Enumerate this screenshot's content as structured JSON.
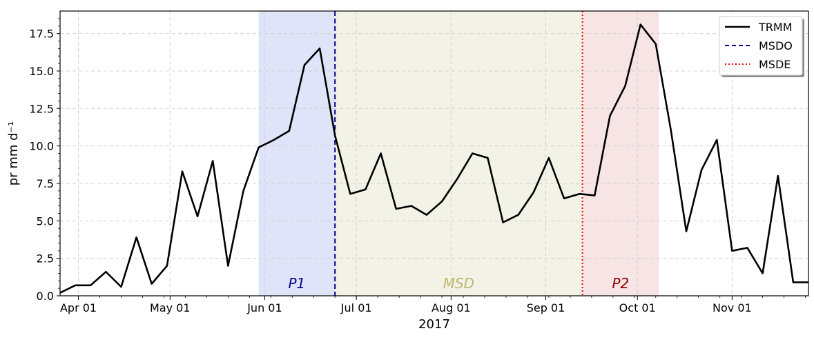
{
  "chart_data": {
    "type": "line",
    "xlabel": "2017",
    "ylabel": "pr mm d⁻¹",
    "ylim": [
      0,
      19
    ],
    "xlim": [
      "2017-03-26",
      "2017-11-26"
    ],
    "grid": true,
    "legend_position": "top-right",
    "y_ticks": [
      "0.0",
      "2.5",
      "5.0",
      "7.5",
      "10.0",
      "12.5",
      "15.0",
      "17.5"
    ],
    "x_ticks": [
      {
        "date": "2017-04-01",
        "label": "Apr 01"
      },
      {
        "date": "2017-05-01",
        "label": "May 01"
      },
      {
        "date": "2017-06-01",
        "label": "Jun 01"
      },
      {
        "date": "2017-07-01",
        "label": "Jul 01"
      },
      {
        "date": "2017-08-01",
        "label": "Aug 01"
      },
      {
        "date": "2017-09-01",
        "label": "Sep 01"
      },
      {
        "date": "2017-10-01",
        "label": "Oct 01"
      },
      {
        "date": "2017-11-01",
        "label": "Nov 01"
      }
    ],
    "series": [
      {
        "name": "TRMM",
        "color": "#000000",
        "style": "solid",
        "x": [
          "2017-03-26",
          "2017-03-31",
          "2017-04-05",
          "2017-04-10",
          "2017-04-15",
          "2017-04-20",
          "2017-04-25",
          "2017-04-30",
          "2017-05-05",
          "2017-05-10",
          "2017-05-15",
          "2017-05-20",
          "2017-05-25",
          "2017-05-30",
          "2017-06-04",
          "2017-06-09",
          "2017-06-14",
          "2017-06-19",
          "2017-06-24",
          "2017-06-29",
          "2017-07-04",
          "2017-07-09",
          "2017-07-14",
          "2017-07-19",
          "2017-07-24",
          "2017-07-29",
          "2017-08-03",
          "2017-08-08",
          "2017-08-13",
          "2017-08-18",
          "2017-08-23",
          "2017-08-28",
          "2017-09-02",
          "2017-09-07",
          "2017-09-12",
          "2017-09-17",
          "2017-09-22",
          "2017-09-27",
          "2017-10-02",
          "2017-10-07",
          "2017-10-12",
          "2017-10-17",
          "2017-10-22",
          "2017-10-27",
          "2017-11-01",
          "2017-11-06",
          "2017-11-11",
          "2017-11-16",
          "2017-11-21",
          "2017-11-26"
        ],
        "values": [
          0.2,
          0.7,
          0.7,
          1.6,
          0.6,
          3.9,
          0.8,
          2.0,
          8.3,
          5.3,
          9.0,
          2.0,
          7.0,
          9.9,
          10.4,
          11.0,
          15.4,
          16.5,
          10.7,
          6.8,
          7.1,
          9.5,
          5.8,
          6.0,
          5.4,
          6.3,
          7.8,
          9.5,
          9.2,
          4.9,
          5.4,
          6.9,
          9.2,
          6.5,
          6.8,
          6.7,
          12.0,
          14.0,
          18.1,
          16.8,
          11.0,
          4.3,
          8.4,
          10.4,
          3.0,
          3.2,
          1.5,
          8.0,
          0.9,
          0.9
        ]
      }
    ],
    "markers": [
      {
        "name": "MSDO",
        "date": "2017-06-24",
        "color": "#00008b",
        "style": "dashed"
      },
      {
        "name": "MSDE",
        "date": "2017-09-13",
        "color": "#ff0000",
        "style": "dotted"
      }
    ],
    "regions": [
      {
        "label": "P1",
        "start": "2017-05-30",
        "end": "2017-06-24",
        "fill": "#e0e4f8",
        "text_color": "#00008b"
      },
      {
        "label": "MSD",
        "start": "2017-06-24",
        "end": "2017-09-13",
        "fill": "#f2f2e6",
        "text_color": "#bdb76b"
      },
      {
        "label": "P2",
        "start": "2017-09-13",
        "end": "2017-10-08",
        "fill": "#f7e4e4",
        "text_color": "#8b0000"
      }
    ]
  }
}
